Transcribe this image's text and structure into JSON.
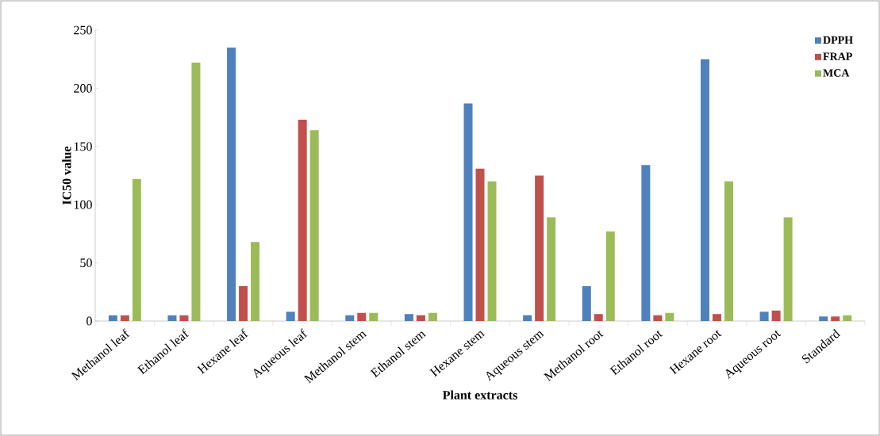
{
  "chart_data": {
    "type": "bar",
    "xlabel": "Plant extracts",
    "ylabel": "IC50 value",
    "categories": [
      "Methanol leaf",
      "Ethanol leaf",
      "Hexane leaf",
      "Aqueous leaf",
      "Methanol stem",
      "Ethanol stem",
      "Hexane stem",
      "Aqueous stem",
      "Methanol root",
      "Ethanol root",
      "Hexane root",
      "Aqueous root",
      "Standard"
    ],
    "series": [
      {
        "name": "DPPH",
        "color": "#4f81bd",
        "values": [
          5,
          5,
          235,
          8,
          5,
          6,
          187,
          5,
          30,
          134,
          225,
          8,
          4
        ]
      },
      {
        "name": "FRAP",
        "color": "#c0504d",
        "values": [
          5,
          5,
          30,
          173,
          7,
          5,
          131,
          125,
          6,
          5,
          6,
          9,
          4
        ]
      },
      {
        "name": "MCA",
        "color": "#9bbb59",
        "values": [
          122,
          222,
          68,
          164,
          7,
          7,
          120,
          89,
          77,
          7,
          120,
          89,
          5
        ]
      }
    ],
    "ylim": [
      0,
      250
    ],
    "yticks": [
      0,
      50,
      100,
      150,
      200,
      250
    ],
    "grid": false,
    "legend": "top right"
  }
}
